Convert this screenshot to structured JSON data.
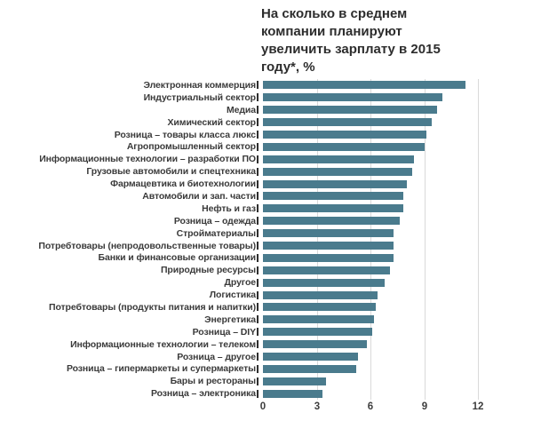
{
  "page": {
    "background": "#ffffff"
  },
  "title_lines": [
    "На сколько в среднем",
    "компании планируют",
    "увеличить зарплату в 2015",
    "году*, %"
  ],
  "colors": {
    "bar": "#4a7b8d",
    "gridline": "#d9d9d9",
    "title_text": "#2d2d2d",
    "label_text": "#3a3a3a",
    "tick_text": "#3d3d3d",
    "tick_mark": "#2f2f2f",
    "background": "#ffffff"
  },
  "chart_data": {
    "type": "bar",
    "orientation": "horizontal",
    "title": "На сколько в среднем компании планируют увеличить зарплату в 2015 году*, %",
    "unit": "%",
    "sorted": "descending",
    "categories": [
      "Электронная коммерция",
      "Индустриальный сектор",
      "Медиа",
      "Химический сектор",
      "Розница – товары класса люкс",
      "Агропромышленный сектор",
      "Информационные технологии – разработки ПО",
      "Грузовые автомобили и спецтехника",
      "Фармацевтика и биотехнологии",
      "Автомобили и зап. части",
      "Нефть и газ",
      "Розница – одежда",
      "Стройматериалы",
      "Потребтовары (непродовольственные товары)",
      "Банки и финансовые организации",
      "Природные ресурсы",
      "Другое",
      "Логистика",
      "Потребтовары (продукты питания и напитки)",
      "Энергетика",
      "Розница – DIY",
      "Информационные технологии – телеком",
      "Розница – другое",
      "Розница – гипермаркеты и супермаркеты",
      "Бары и рестораны",
      "Розница – электроника"
    ],
    "values": [
      11.3,
      10.0,
      9.7,
      9.4,
      9.1,
      9.0,
      8.4,
      8.3,
      8.0,
      7.8,
      7.8,
      7.6,
      7.3,
      7.3,
      7.3,
      7.1,
      6.8,
      6.4,
      6.3,
      6.2,
      6.1,
      5.8,
      5.3,
      5.2,
      3.5,
      3.3
    ],
    "xlabel": "",
    "ylabel": "",
    "xticks": [
      0,
      3,
      6,
      9,
      12
    ],
    "xlim": [
      0,
      15
    ],
    "grid": true,
    "legend": false
  }
}
